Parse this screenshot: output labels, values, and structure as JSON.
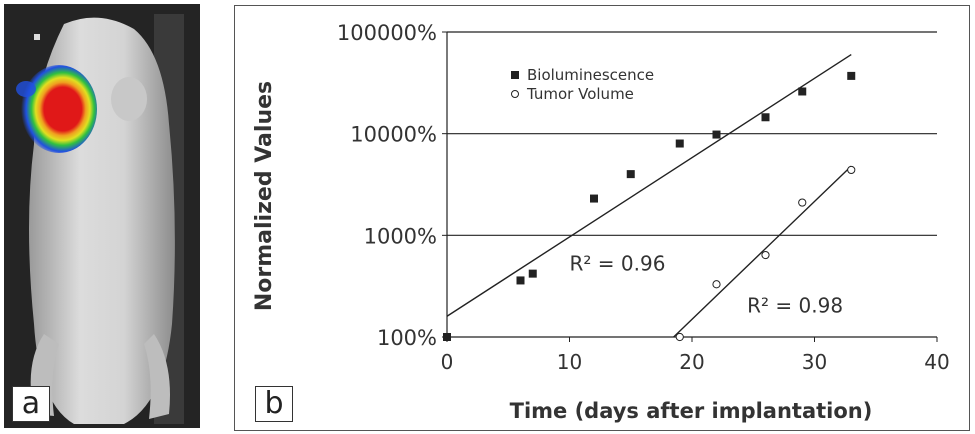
{
  "panel_a": {
    "label": "a"
  },
  "panel_b": {
    "label": "b"
  },
  "chart_data": {
    "type": "scatter",
    "title": "",
    "xlabel": "Time (days after implantation)",
    "ylabel": "Normalized Values",
    "x_ticks": [
      0,
      10,
      20,
      30,
      40
    ],
    "xlim": [
      0,
      40
    ],
    "y_scale": "log",
    "ylim": [
      100,
      100000
    ],
    "y_ticks": [
      100,
      1000,
      10000,
      100000
    ],
    "y_tick_labels": [
      "100%",
      "1000%",
      "10000%",
      "100000%"
    ],
    "grid": "horizontal",
    "legend_position": "top-left",
    "series": [
      {
        "name": "Bioluminescence",
        "marker": "filled-square",
        "x": [
          0,
          6,
          7,
          12,
          15,
          19,
          22,
          26,
          29,
          33
        ],
        "y": [
          100,
          360,
          420,
          2300,
          4000,
          8000,
          9800,
          14500,
          26000,
          37000
        ],
        "fit": {
          "x": [
            0,
            33
          ],
          "y": [
            160,
            60000
          ]
        },
        "annotation": {
          "text": "R² = 0.96",
          "x": 10,
          "y": 450
        }
      },
      {
        "name": "Tumor Volume",
        "marker": "open-circle",
        "x": [
          19,
          22,
          26,
          29,
          33
        ],
        "y": [
          100,
          330,
          640,
          2100,
          4400
        ],
        "fit": {
          "x": [
            18.5,
            33
          ],
          "y": [
            100,
            4800
          ]
        },
        "annotation": {
          "text": "R² = 0.98",
          "x": 24.5,
          "y": 175
        }
      }
    ]
  }
}
